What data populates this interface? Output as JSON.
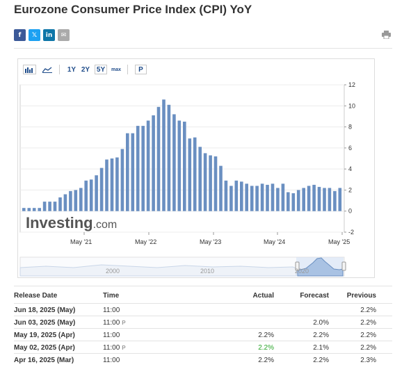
{
  "page": {
    "title": "Eurozone Consumer Price Index (CPI) YoY"
  },
  "share": {
    "buttons": [
      "f",
      "𝕏",
      "in",
      "✉"
    ]
  },
  "toolbar": {
    "ranges": [
      "1Y",
      "2Y",
      "5Y",
      "max"
    ],
    "selected_range": "5Y",
    "p_label": "P"
  },
  "chart_data": {
    "type": "bar",
    "title": "",
    "xlabel": "",
    "ylabel": "",
    "ylim": [
      -2,
      12
    ],
    "y_ticks": [
      "12",
      "10",
      "8",
      "6",
      "4",
      "2",
      "0",
      "-2"
    ],
    "x_ticks": [
      "May '21",
      "May '22",
      "May '23",
      "May '24",
      "May '25"
    ],
    "bar_color": "#6a8fc1",
    "grid": true,
    "watermark": "Investing.com",
    "navigator_labels": [
      "2000",
      "2010",
      "2020"
    ],
    "values": [
      0.3,
      0.3,
      0.3,
      0.3,
      0.9,
      0.9,
      0.9,
      1.3,
      1.6,
      1.9,
      2.0,
      2.2,
      2.9,
      3.0,
      3.4,
      4.1,
      4.9,
      5.0,
      5.1,
      5.9,
      7.4,
      7.4,
      8.1,
      8.1,
      8.6,
      9.1,
      9.9,
      10.6,
      10.1,
      9.2,
      8.6,
      8.5,
      6.9,
      7.0,
      6.1,
      5.5,
      5.3,
      5.2,
      4.3,
      2.9,
      2.4,
      2.9,
      2.8,
      2.6,
      2.4,
      2.4,
      2.6,
      2.5,
      2.6,
      2.2,
      2.6,
      1.8,
      1.7,
      2.0,
      2.2,
      2.4,
      2.5,
      2.3,
      2.2,
      2.2,
      1.9,
      2.2
    ]
  },
  "table": {
    "headers": {
      "release_date": "Release Date",
      "time": "Time",
      "actual": "Actual",
      "forecast": "Forecast",
      "previous": "Previous"
    },
    "rows": [
      {
        "date": "Jun 18, 2025 (May)",
        "time": "11:00",
        "prelim": false,
        "actual": "",
        "actual_color": "#333333",
        "forecast": "",
        "previous": "2.2%"
      },
      {
        "date": "Jun 03, 2025 (May)",
        "time": "11:00",
        "prelim": true,
        "actual": "",
        "actual_color": "#333333",
        "forecast": "2.0%",
        "previous": "2.2%"
      },
      {
        "date": "May 19, 2025 (Apr)",
        "time": "11:00",
        "prelim": false,
        "actual": "2.2%",
        "actual_color": "#333333",
        "forecast": "2.2%",
        "previous": "2.2%"
      },
      {
        "date": "May 02, 2025 (Apr)",
        "time": "11:00",
        "prelim": true,
        "actual": "2.2%",
        "actual_color": "#2aa52a",
        "forecast": "2.1%",
        "previous": "2.2%"
      },
      {
        "date": "Apr 16, 2025 (Mar)",
        "time": "11:00",
        "prelim": false,
        "actual": "2.2%",
        "actual_color": "#333333",
        "forecast": "2.2%",
        "previous": "2.3%"
      }
    ],
    "prelim_icon": "P"
  }
}
